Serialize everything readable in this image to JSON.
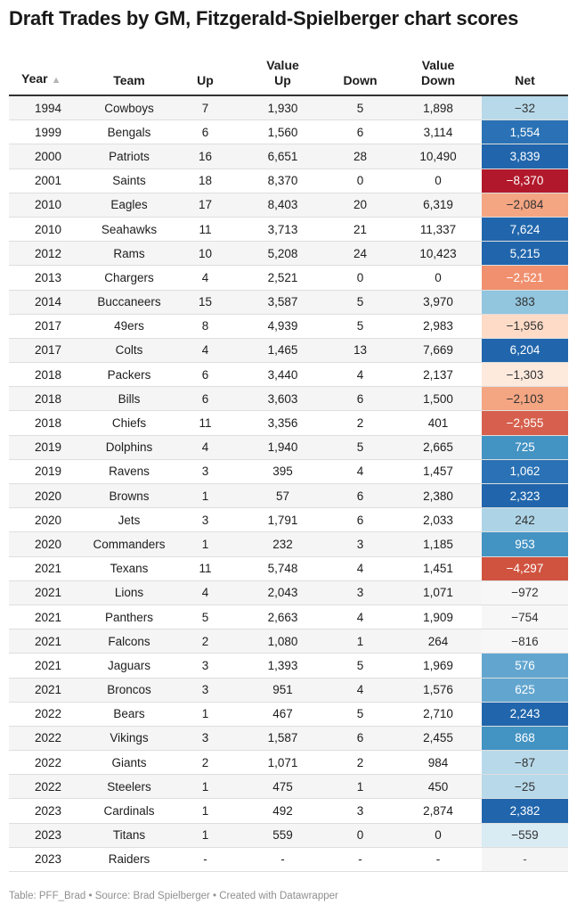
{
  "title": "Draft Trades by GM, Fitzgerald-Spielberger chart scores",
  "footer": "Table: PFF_Brad • Source: Brad Spielberger • Created with Datawrapper",
  "headers": {
    "year": "Year",
    "team": "Team",
    "up": "Up",
    "value_up_1": "Value",
    "value_up_2": "Up",
    "down": "Down",
    "value_down_1": "Value",
    "value_down_2": "Down",
    "net": "Net",
    "sort_icon": "▲"
  },
  "net_colors": {
    "strong_positive": "#2166ac",
    "positive": "#4393c3",
    "mild_positive": "#92c5de",
    "neutral": "#f7f7f7",
    "mild_negative": "#fddbc7",
    "negative": "#f4a582",
    "strong_negative": "#d6604d",
    "extreme_negative": "#b2182b"
  },
  "chart_data": {
    "type": "table",
    "title": "Draft Trades by GM, Fitzgerald-Spielberger chart scores",
    "columns": [
      "Year",
      "Team",
      "Up",
      "Value Up",
      "Down",
      "Value Down",
      "Net"
    ],
    "sort": "Year ascending",
    "rows": [
      {
        "year": "1994",
        "team": "Cowboys",
        "up": "7",
        "value_up": "1,930",
        "down": "5",
        "value_down": "1,898",
        "net": "−32",
        "net_value": -32
      },
      {
        "year": "1999",
        "team": "Bengals",
        "up": "6",
        "value_up": "1,560",
        "down": "6",
        "value_down": "3,114",
        "net": "1,554",
        "net_value": 1554
      },
      {
        "year": "2000",
        "team": "Patriots",
        "up": "16",
        "value_up": "6,651",
        "down": "28",
        "value_down": "10,490",
        "net": "3,839",
        "net_value": 3839
      },
      {
        "year": "2001",
        "team": "Saints",
        "up": "18",
        "value_up": "8,370",
        "down": "0",
        "value_down": "0",
        "net": "−8,370",
        "net_value": -8370
      },
      {
        "year": "2010",
        "team": "Eagles",
        "up": "17",
        "value_up": "8,403",
        "down": "20",
        "value_down": "6,319",
        "net": "−2,084",
        "net_value": -2084
      },
      {
        "year": "2010",
        "team": "Seahawks",
        "up": "11",
        "value_up": "3,713",
        "down": "21",
        "value_down": "11,337",
        "net": "7,624",
        "net_value": 7624
      },
      {
        "year": "2012",
        "team": "Rams",
        "up": "10",
        "value_up": "5,208",
        "down": "24",
        "value_down": "10,423",
        "net": "5,215",
        "net_value": 5215
      },
      {
        "year": "2013",
        "team": "Chargers",
        "up": "4",
        "value_up": "2,521",
        "down": "0",
        "value_down": "0",
        "net": "−2,521",
        "net_value": -2521
      },
      {
        "year": "2014",
        "team": "Buccaneers",
        "up": "15",
        "value_up": "3,587",
        "down": "5",
        "value_down": "3,970",
        "net": "383",
        "net_value": 383
      },
      {
        "year": "2017",
        "team": "49ers",
        "up": "8",
        "value_up": "4,939",
        "down": "5",
        "value_down": "2,983",
        "net": "−1,956",
        "net_value": -1956
      },
      {
        "year": "2017",
        "team": "Colts",
        "up": "4",
        "value_up": "1,465",
        "down": "13",
        "value_down": "7,669",
        "net": "6,204",
        "net_value": 6204
      },
      {
        "year": "2018",
        "team": "Packers",
        "up": "6",
        "value_up": "3,440",
        "down": "4",
        "value_down": "2,137",
        "net": "−1,303",
        "net_value": -1303
      },
      {
        "year": "2018",
        "team": "Bills",
        "up": "6",
        "value_up": "3,603",
        "down": "6",
        "value_down": "1,500",
        "net": "−2,103",
        "net_value": -2103
      },
      {
        "year": "2018",
        "team": "Chiefs",
        "up": "11",
        "value_up": "3,356",
        "down": "2",
        "value_down": "401",
        "net": "−2,955",
        "net_value": -2955
      },
      {
        "year": "2019",
        "team": "Dolphins",
        "up": "4",
        "value_up": "1,940",
        "down": "5",
        "value_down": "2,665",
        "net": "725",
        "net_value": 725
      },
      {
        "year": "2019",
        "team": "Ravens",
        "up": "3",
        "value_up": "395",
        "down": "4",
        "value_down": "1,457",
        "net": "1,062",
        "net_value": 1062
      },
      {
        "year": "2020",
        "team": "Browns",
        "up": "1",
        "value_up": "57",
        "down": "6",
        "value_down": "2,380",
        "net": "2,323",
        "net_value": 2323
      },
      {
        "year": "2020",
        "team": "Jets",
        "up": "3",
        "value_up": "1,791",
        "down": "6",
        "value_down": "2,033",
        "net": "242",
        "net_value": 242
      },
      {
        "year": "2020",
        "team": "Commanders",
        "up": "1",
        "value_up": "232",
        "down": "3",
        "value_down": "1,185",
        "net": "953",
        "net_value": 953
      },
      {
        "year": "2021",
        "team": "Texans",
        "up": "11",
        "value_up": "5,748",
        "down": "4",
        "value_down": "1,451",
        "net": "−4,297",
        "net_value": -4297
      },
      {
        "year": "2021",
        "team": "Lions",
        "up": "4",
        "value_up": "2,043",
        "down": "3",
        "value_down": "1,071",
        "net": "−972",
        "net_value": -972
      },
      {
        "year": "2021",
        "team": "Panthers",
        "up": "5",
        "value_up": "2,663",
        "down": "4",
        "value_down": "1,909",
        "net": "−754",
        "net_value": -754
      },
      {
        "year": "2021",
        "team": "Falcons",
        "up": "2",
        "value_up": "1,080",
        "down": "1",
        "value_down": "264",
        "net": "−816",
        "net_value": -816
      },
      {
        "year": "2021",
        "team": "Jaguars",
        "up": "3",
        "value_up": "1,393",
        "down": "5",
        "value_down": "1,969",
        "net": "576",
        "net_value": 576
      },
      {
        "year": "2021",
        "team": "Broncos",
        "up": "3",
        "value_up": "951",
        "down": "4",
        "value_down": "1,576",
        "net": "625",
        "net_value": 625
      },
      {
        "year": "2022",
        "team": "Bears",
        "up": "1",
        "value_up": "467",
        "down": "5",
        "value_down": "2,710",
        "net": "2,243",
        "net_value": 2243
      },
      {
        "year": "2022",
        "team": "Vikings",
        "up": "3",
        "value_up": "1,587",
        "down": "6",
        "value_down": "2,455",
        "net": "868",
        "net_value": 868
      },
      {
        "year": "2022",
        "team": "Giants",
        "up": "2",
        "value_up": "1,071",
        "down": "2",
        "value_down": "984",
        "net": "−87",
        "net_value": -87
      },
      {
        "year": "2022",
        "team": "Steelers",
        "up": "1",
        "value_up": "475",
        "down": "1",
        "value_down": "450",
        "net": "−25",
        "net_value": -25
      },
      {
        "year": "2023",
        "team": "Cardinals",
        "up": "1",
        "value_up": "492",
        "down": "3",
        "value_down": "2,874",
        "net": "2,382",
        "net_value": 2382
      },
      {
        "year": "2023",
        "team": "Titans",
        "up": "1",
        "value_up": "559",
        "down": "0",
        "value_down": "0",
        "net": "−559",
        "net_value": -559
      },
      {
        "year": "2023",
        "team": "Raiders",
        "up": "-",
        "value_up": "-",
        "down": "-",
        "value_down": "-",
        "net": "-",
        "net_value": null
      }
    ]
  }
}
